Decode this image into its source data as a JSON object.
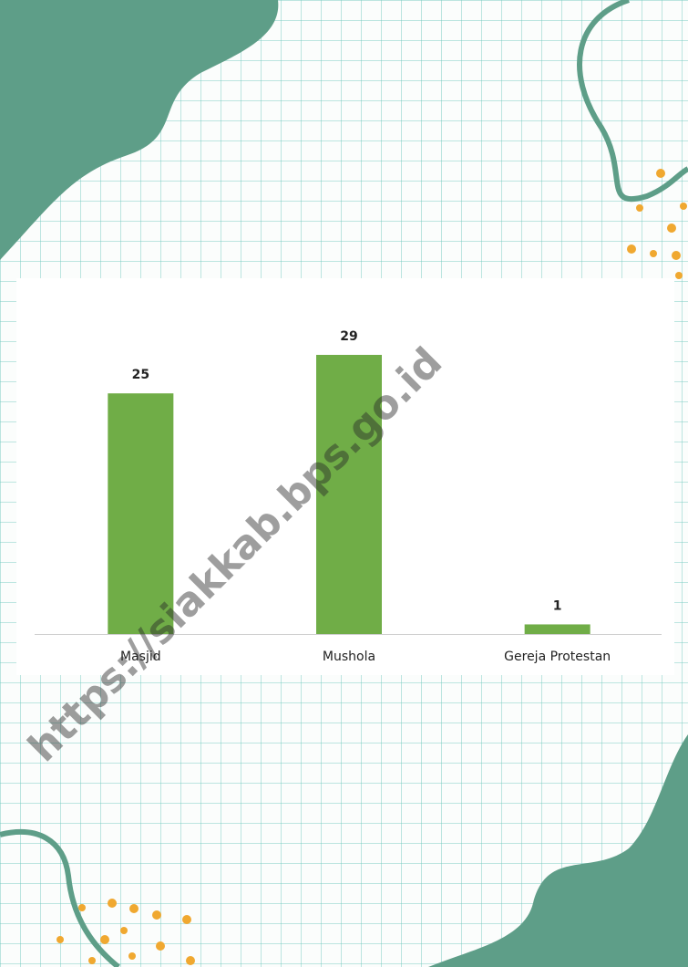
{
  "watermark": "https://siakkab.bps.go.id",
  "chart_data": {
    "type": "bar",
    "categories": [
      "Masjid",
      "Mushola",
      "Gereja Protestan"
    ],
    "values": [
      25,
      29,
      1
    ],
    "color": "#70ad47",
    "data_labels": true
  }
}
